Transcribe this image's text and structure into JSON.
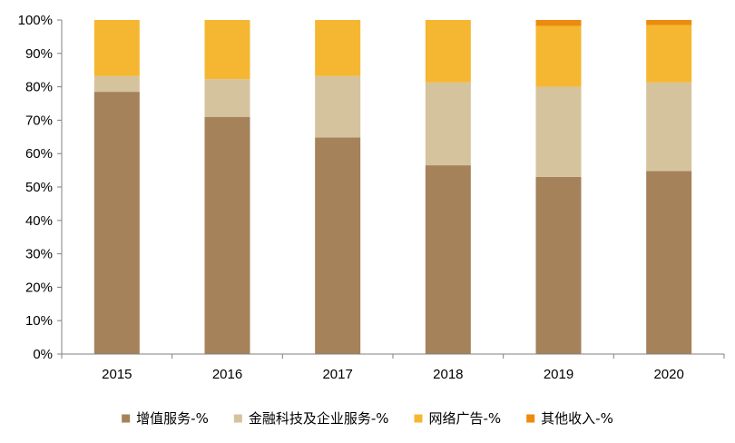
{
  "chart_data": {
    "type": "bar",
    "stacked": true,
    "percent": true,
    "categories": [
      "2015",
      "2016",
      "2017",
      "2018",
      "2019",
      "2020"
    ],
    "series": [
      {
        "name": "增值服务-%",
        "color": "#A5825A",
        "values": [
          78.5,
          71.0,
          64.8,
          56.5,
          53.0,
          54.8
        ]
      },
      {
        "name": "金融科技及企业服务-%",
        "color": "#D5C39E",
        "values": [
          4.7,
          11.3,
          18.4,
          24.8,
          27.0,
          26.5
        ]
      },
      {
        "name": "网络广告-%",
        "color": "#F5B731",
        "values": [
          16.8,
          17.7,
          16.8,
          18.7,
          18.2,
          17.2
        ]
      },
      {
        "name": "其他收入-%",
        "color": "#ED8B0E",
        "values": [
          0.0,
          0.0,
          0.0,
          0.0,
          1.8,
          1.5
        ]
      }
    ],
    "yticks": [
      "0%",
      "10%",
      "20%",
      "30%",
      "40%",
      "50%",
      "60%",
      "70%",
      "80%",
      "90%",
      "100%"
    ],
    "ylim": [
      0,
      100
    ],
    "grid": false,
    "legend_position": "bottom",
    "title": "",
    "xlabel": "",
    "ylabel": ""
  }
}
